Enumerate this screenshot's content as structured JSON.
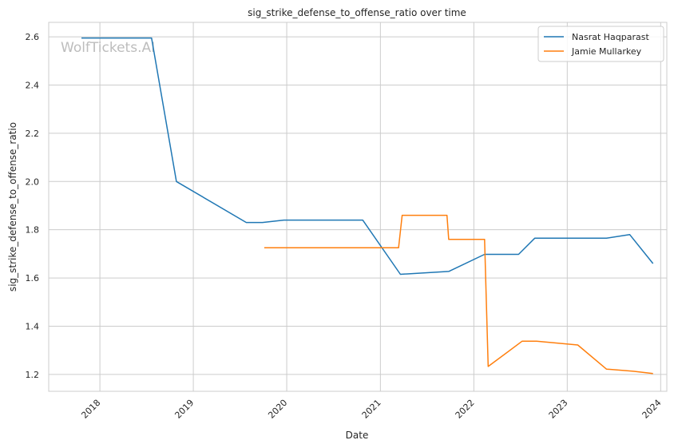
{
  "chart_data": {
    "type": "line",
    "title": "sig_strike_defense_to_offense_ratio over time",
    "xlabel": "Date",
    "ylabel": "sig_strike_defense_to_offense_ratio",
    "watermark": "WolfTickets.AI",
    "xlim": [
      "2017-06-15",
      "2024-01-25"
    ],
    "ylim": [
      1.13,
      2.66
    ],
    "x_ticks": [
      "2018-01-01",
      "2019-01-01",
      "2020-01-01",
      "2021-01-01",
      "2022-01-01",
      "2023-01-01",
      "2024-01-01"
    ],
    "x_tick_labels": [
      "2018",
      "2019",
      "2020",
      "2021",
      "2022",
      "2023",
      "2024"
    ],
    "y_ticks": [
      1.2,
      1.4,
      1.6,
      1.8,
      2.0,
      2.2,
      2.4,
      2.6
    ],
    "y_tick_labels": [
      "1.2",
      "1.4",
      "1.6",
      "1.8",
      "2.0",
      "2.2",
      "2.4",
      "2.6"
    ],
    "grid": true,
    "legend_position": "top-right",
    "series": [
      {
        "name": "Nasrat Haqparast",
        "color": "#1f77b4",
        "points": [
          [
            "2017-10-21",
            2.595
          ],
          [
            "2018-07-22",
            2.595
          ],
          [
            "2018-10-27",
            2.0
          ],
          [
            "2019-07-27",
            1.83
          ],
          [
            "2019-09-28",
            1.83
          ],
          [
            "2019-12-21",
            1.84
          ],
          [
            "2020-10-24",
            1.84
          ],
          [
            "2021-03-20",
            1.615
          ],
          [
            "2021-09-25",
            1.627
          ],
          [
            "2022-02-12",
            1.698
          ],
          [
            "2022-06-25",
            1.698
          ],
          [
            "2022-08-27",
            1.765
          ],
          [
            "2023-06-03",
            1.765
          ],
          [
            "2023-09-02",
            1.78
          ],
          [
            "2023-12-02",
            1.66
          ]
        ]
      },
      {
        "name": "Jamie Mullarkey",
        "color": "#ff7f0e",
        "points": [
          [
            "2019-10-05",
            1.725
          ],
          [
            "2021-03-13",
            1.725
          ],
          [
            "2021-03-27",
            1.86
          ],
          [
            "2021-09-18",
            1.86
          ],
          [
            "2021-09-25",
            1.76
          ],
          [
            "2022-02-12",
            1.76
          ],
          [
            "2022-02-26",
            1.233
          ],
          [
            "2022-07-09",
            1.338
          ],
          [
            "2022-09-03",
            1.338
          ],
          [
            "2023-02-11",
            1.322
          ],
          [
            "2023-06-03",
            1.222
          ],
          [
            "2023-09-16",
            1.213
          ],
          [
            "2023-12-02",
            1.204
          ]
        ]
      }
    ]
  }
}
